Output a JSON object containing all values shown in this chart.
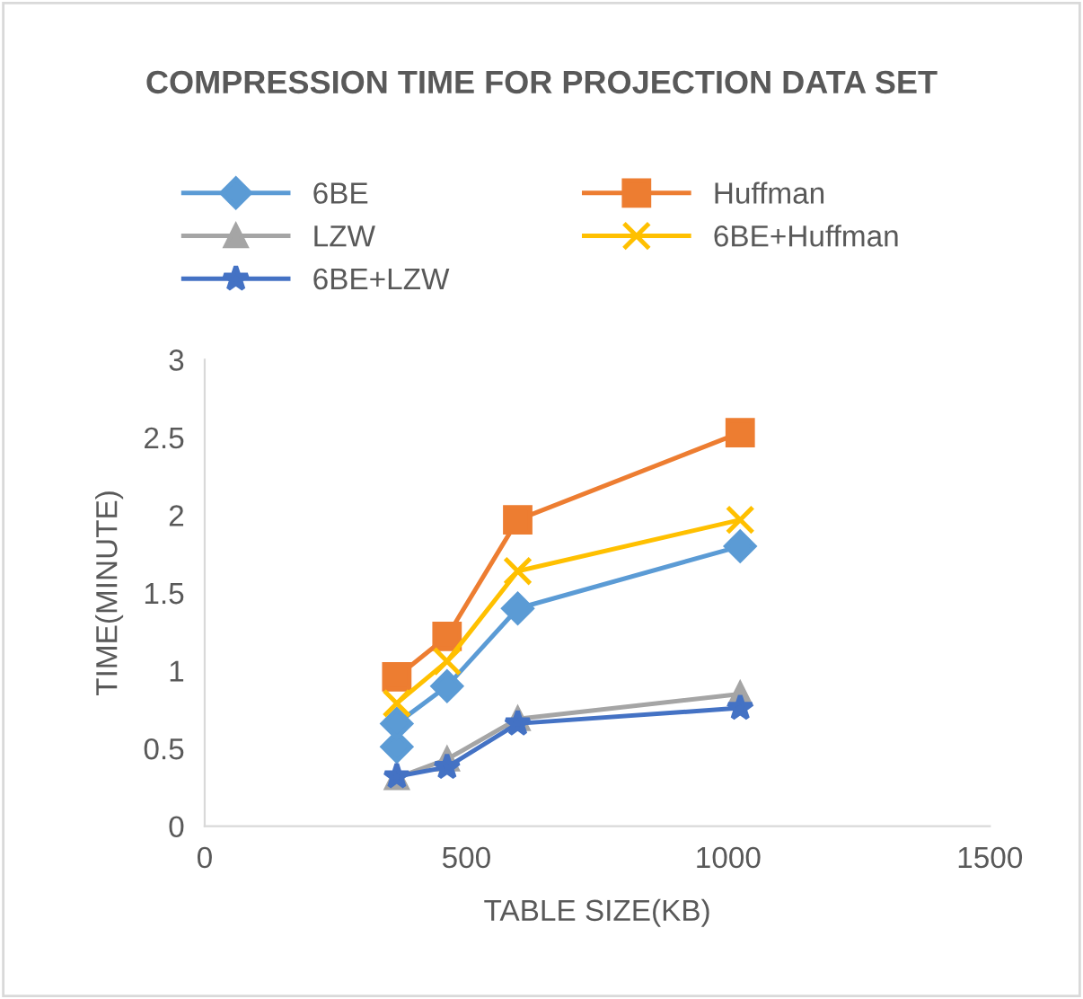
{
  "chart_data": {
    "type": "line",
    "title": "COMPRESSION TIME FOR PROJECTION DATA SET",
    "xlabel": "TABLE SIZE(KB)",
    "ylabel": "TIME(MINUTE)",
    "xlim": [
      0,
      1500
    ],
    "xticks": [
      0,
      500,
      1000,
      1500
    ],
    "ylim": [
      0,
      3
    ],
    "yticks": [
      0,
      0.5,
      1,
      1.5,
      2,
      2.5,
      3
    ],
    "grid": false,
    "legend": "top",
    "line_style": "solid",
    "series": [
      {
        "name": "6BE",
        "color": "#5b9bd5",
        "marker": "diamond",
        "x": [
          367,
          367,
          463,
          598,
          1023
        ],
        "values": [
          0.51,
          0.66,
          0.9,
          1.4,
          1.8
        ]
      },
      {
        "name": "Huffman",
        "color": "#ed7d31",
        "marker": "square",
        "x": [
          367,
          463,
          598,
          1023
        ],
        "values": [
          0.96,
          1.22,
          1.97,
          2.53
        ]
      },
      {
        "name": "LZW",
        "color": "#a5a5a5",
        "marker": "triangle",
        "x": [
          367,
          463,
          598,
          1023
        ],
        "values": [
          0.31,
          0.43,
          0.69,
          0.85
        ]
      },
      {
        "name": "6BE+Huffman",
        "color": "#ffc000",
        "marker": "cross",
        "x": [
          367,
          463,
          598,
          1023
        ],
        "values": [
          0.79,
          1.06,
          1.64,
          1.97
        ]
      },
      {
        "name": "6BE+LZW",
        "color": "#4472c4",
        "marker": "star",
        "x": [
          367,
          463,
          598,
          1023
        ],
        "values": [
          0.32,
          0.38,
          0.66,
          0.76
        ]
      }
    ]
  }
}
